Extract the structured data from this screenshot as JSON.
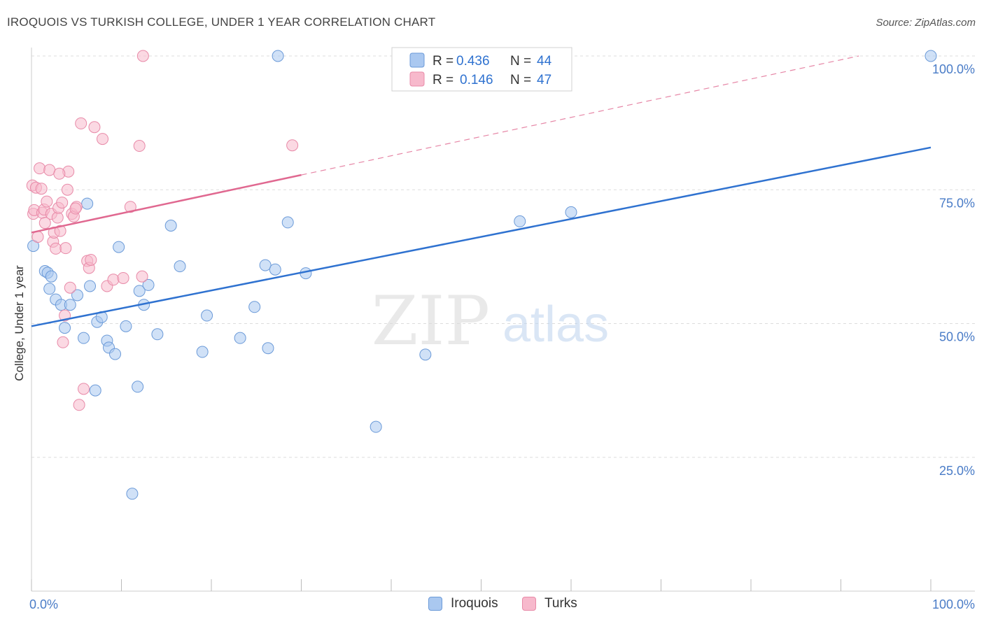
{
  "title": "IROQUOIS VS TURKISH COLLEGE, UNDER 1 YEAR CORRELATION CHART",
  "source": "Source: ZipAtlas.com",
  "watermark": {
    "zip": "ZIP",
    "atlas": "atlas"
  },
  "colors": {
    "iroquois_fill": "#aac8f0",
    "iroquois_stroke": "#6b9ad8",
    "iroquois_line": "#2f72d0",
    "turks_fill": "#f7b9cc",
    "turks_stroke": "#e88aa8",
    "turks_line": "#e06890",
    "grid": "#dddddd",
    "tick_text": "#4a7cc7"
  },
  "legend": {
    "rows": [
      {
        "r_label": "R =",
        "r_value": "0.436",
        "n_label": "N =",
        "n_value": "44"
      },
      {
        "r_label": "R =",
        "r_value": "0.146",
        "n_label": "N =",
        "n_value": "47"
      }
    ]
  },
  "bottom_legend": {
    "iroquois": "Iroquois",
    "turks": "Turks"
  },
  "chart_data": {
    "type": "scatter",
    "title": "IROQUOIS VS TURKISH COLLEGE, UNDER 1 YEAR CORRELATION CHART",
    "xlabel": "",
    "ylabel": "College, Under 1 year",
    "xlim": [
      0,
      100
    ],
    "ylim": [
      0,
      100
    ],
    "x_tick_labels": [
      "0.0%",
      "100.0%"
    ],
    "y_tick_values": [
      25,
      50,
      75,
      100
    ],
    "y_tick_labels": [
      "25.0%",
      "50.0%",
      "75.0%",
      "100.0%"
    ],
    "grid": true,
    "series": [
      {
        "name": "Iroquois",
        "r": 0.436,
        "n": 44,
        "trend": {
          "x": [
            0,
            100
          ],
          "y": [
            49.5,
            82.9
          ],
          "dashed_after_x": null
        },
        "points": [
          [
            0.2,
            64.5
          ],
          [
            1.5,
            59.8
          ],
          [
            1.8,
            59.5
          ],
          [
            2.0,
            56.5
          ],
          [
            2.2,
            58.8
          ],
          [
            2.7,
            54.5
          ],
          [
            3.3,
            53.5
          ],
          [
            3.7,
            49.2
          ],
          [
            4.3,
            53.5
          ],
          [
            5.1,
            55.3
          ],
          [
            5.8,
            47.3
          ],
          [
            6.2,
            72.4
          ],
          [
            6.5,
            57.0
          ],
          [
            7.1,
            37.5
          ],
          [
            7.3,
            50.3
          ],
          [
            7.8,
            51.2
          ],
          [
            8.4,
            46.8
          ],
          [
            8.6,
            45.5
          ],
          [
            9.3,
            44.3
          ],
          [
            9.7,
            64.3
          ],
          [
            10.5,
            49.5
          ],
          [
            11.2,
            18.2
          ],
          [
            11.8,
            38.2
          ],
          [
            12.0,
            56.1
          ],
          [
            12.5,
            53.5
          ],
          [
            13.0,
            57.2
          ],
          [
            14.0,
            48.0
          ],
          [
            15.5,
            68.3
          ],
          [
            16.5,
            60.7
          ],
          [
            19.0,
            44.7
          ],
          [
            19.5,
            51.5
          ],
          [
            23.2,
            47.3
          ],
          [
            24.8,
            53.1
          ],
          [
            26.0,
            60.9
          ],
          [
            26.3,
            45.4
          ],
          [
            27.1,
            60.1
          ],
          [
            27.4,
            100.0
          ],
          [
            28.5,
            68.9
          ],
          [
            30.5,
            59.4
          ],
          [
            38.3,
            30.7
          ],
          [
            43.8,
            44.2
          ],
          [
            54.3,
            69.1
          ],
          [
            60.0,
            70.8
          ],
          [
            100.0,
            100.0
          ]
        ]
      },
      {
        "name": "Turks",
        "r": 0.146,
        "n": 47,
        "trend": {
          "x": [
            0,
            92
          ],
          "y": [
            67.0,
            100.0
          ],
          "dashed_after_x": 30
        },
        "points": [
          [
            0.1,
            75.8
          ],
          [
            0.2,
            70.5
          ],
          [
            0.3,
            71.2
          ],
          [
            0.5,
            75.4
          ],
          [
            0.7,
            66.2
          ],
          [
            0.9,
            79.0
          ],
          [
            1.1,
            75.2
          ],
          [
            1.2,
            70.7
          ],
          [
            1.4,
            71.3
          ],
          [
            1.5,
            68.8
          ],
          [
            1.7,
            72.8
          ],
          [
            2.0,
            78.7
          ],
          [
            2.2,
            70.5
          ],
          [
            2.4,
            65.3
          ],
          [
            2.5,
            67.0
          ],
          [
            2.7,
            64.0
          ],
          [
            2.9,
            69.8
          ],
          [
            3.0,
            71.6
          ],
          [
            3.2,
            67.3
          ],
          [
            3.4,
            72.6
          ],
          [
            3.5,
            46.5
          ],
          [
            3.7,
            51.5
          ],
          [
            3.8,
            64.1
          ],
          [
            4.0,
            75.0
          ],
          [
            4.1,
            78.4
          ],
          [
            4.3,
            56.7
          ],
          [
            4.5,
            70.5
          ],
          [
            4.7,
            70.0
          ],
          [
            5.0,
            71.8
          ],
          [
            5.3,
            34.8
          ],
          [
            5.5,
            87.4
          ],
          [
            5.8,
            37.8
          ],
          [
            6.2,
            61.7
          ],
          [
            6.4,
            60.4
          ],
          [
            6.6,
            61.9
          ],
          [
            7.0,
            86.7
          ],
          [
            7.9,
            84.5
          ],
          [
            8.4,
            57.0
          ],
          [
            9.1,
            58.2
          ],
          [
            10.2,
            58.5
          ],
          [
            11.0,
            71.8
          ],
          [
            12.0,
            83.2
          ],
          [
            12.3,
            58.8
          ],
          [
            12.4,
            100.0
          ],
          [
            29.0,
            83.3
          ],
          [
            4.9,
            71.5
          ],
          [
            3.1,
            78.0
          ]
        ]
      }
    ]
  }
}
